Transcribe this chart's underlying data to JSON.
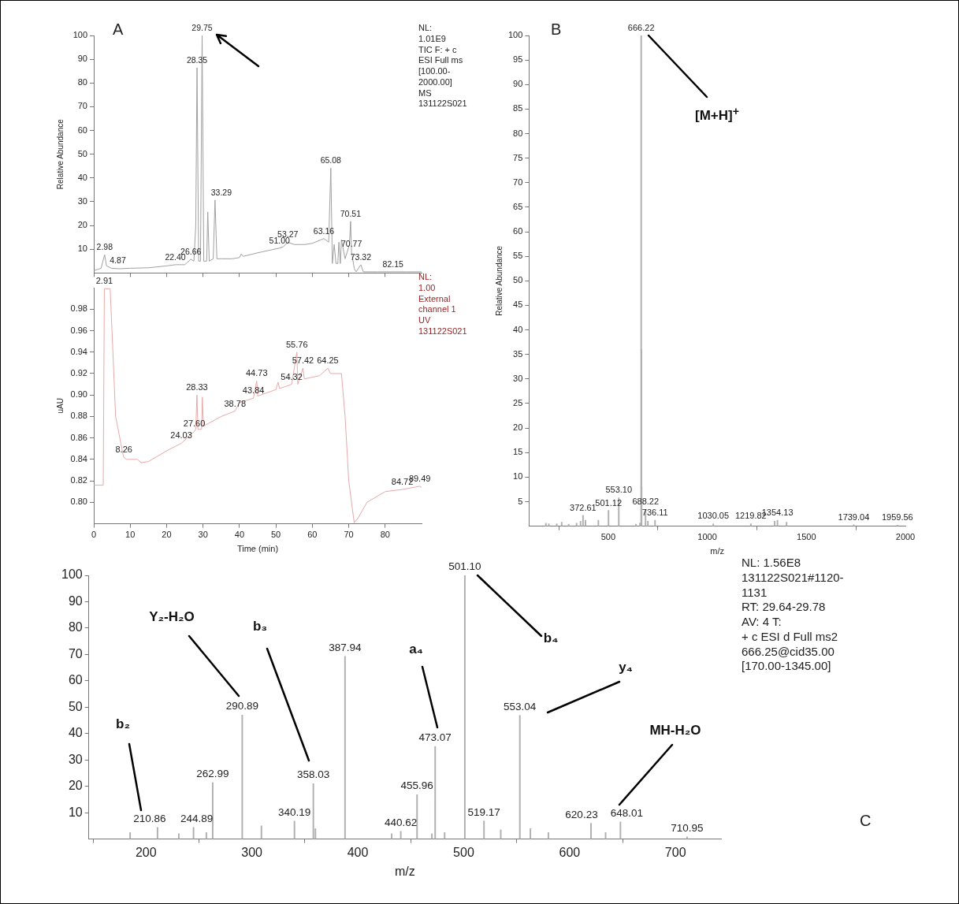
{
  "chart_data": [
    {
      "type": "line",
      "ylabel": "Relative Abundance",
      "xlim": [
        0,
        90
      ],
      "xticks": [
        {
          "value": 0,
          "label": null
        },
        {
          "value": 10,
          "label": null
        },
        {
          "value": 20,
          "label": null
        },
        {
          "value": 30,
          "label": null
        },
        {
          "value": 40,
          "label": null
        },
        {
          "value": 50,
          "label": null
        },
        {
          "value": 60,
          "label": null
        },
        {
          "value": 70,
          "label": null
        },
        {
          "value": 80,
          "label": null
        }
      ],
      "ylim": [
        0,
        100
      ],
      "yticks": [
        10,
        20,
        30,
        40,
        50,
        60,
        70,
        80,
        90,
        100
      ],
      "tick_labels": "y",
      "color": "#a0a0a0",
      "x": [
        0,
        1,
        2,
        2.98,
        3.5,
        4.87,
        7,
        10,
        15,
        20,
        22.4,
        25,
        26.66,
        27.5,
        28.0,
        28.35,
        28.8,
        29.3,
        29.75,
        30.2,
        31,
        31.3,
        31.7,
        32.8,
        33.29,
        33.8,
        35,
        38,
        40,
        40.5,
        41,
        45,
        48,
        51,
        52,
        53.27,
        55,
        58,
        60,
        63.16,
        64.5,
        65.08,
        65.5,
        66,
        66.5,
        67,
        67.3,
        67.7,
        68,
        69,
        70.2,
        70.51,
        70.77,
        71.5,
        72,
        73.32,
        74,
        78,
        82.15,
        86,
        90
      ],
      "values": [
        1,
        1.5,
        2,
        7.7,
        3,
        2,
        1.8,
        2,
        2.2,
        3,
        3.5,
        3.5,
        5.8,
        5,
        20,
        86.4,
        5,
        5,
        100,
        5,
        5,
        25.7,
        5,
        6,
        30.7,
        6,
        6,
        6,
        6.5,
        8,
        7,
        8.5,
        9.5,
        10.5,
        11,
        13,
        12,
        12,
        12.5,
        14.5,
        13,
        44.2,
        4,
        12,
        4,
        4,
        13,
        4,
        14,
        6,
        12,
        21.8,
        9,
        2,
        0.5,
        3.5,
        0.5,
        0.5,
        0.5,
        0.5,
        0.5
      ],
      "annotations": [
        {
          "text": "2.98",
          "x": 2.98,
          "y": 7.7
        },
        {
          "text": "4.87",
          "x": 4.87,
          "y": 2
        },
        {
          "text": "22.40",
          "x": 22.4,
          "y": 3.5
        },
        {
          "text": "26.66",
          "x": 26.66,
          "y": 5.8
        },
        {
          "text": "28.35",
          "x": 28.35,
          "y": 86.4
        },
        {
          "text": "29.75",
          "x": 29.75,
          "y": 100
        },
        {
          "text": "33.29",
          "x": 33.29,
          "y": 30.7
        },
        {
          "text": "51.00",
          "x": 51,
          "y": 10.5
        },
        {
          "text": "53.27",
          "x": 53.27,
          "y": 13
        },
        {
          "text": "63.16",
          "x": 63.16,
          "y": 14.5
        },
        {
          "text": "65.08",
          "x": 65.08,
          "y": 44.2
        },
        {
          "text": "70.51",
          "x": 70.51,
          "y": 21.8
        },
        {
          "text": "70.77",
          "x": 70.77,
          "y": 9
        },
        {
          "text": "73.32",
          "x": 73.32,
          "y": 3.5
        },
        {
          "text": "82.15",
          "x": 82.15,
          "y": 0.5
        },
        "A",
        "NL:\n1.01E9\nTIC F: + c\nESI Full ms\n[100.00-\n2000.00]  MS\n131122S021"
      ]
    },
    {
      "type": "line",
      "xlabel": "Time (min)",
      "ylabel": "uAU",
      "xlim": [
        0,
        90
      ],
      "xticks": [
        0,
        10,
        20,
        30,
        40,
        50,
        60,
        70,
        80
      ],
      "ylim": [
        0.78,
        1.0
      ],
      "yticks": [
        {
          "value": 0.8,
          "label": "0.80"
        },
        {
          "value": 0.82,
          "label": "0.82"
        },
        {
          "value": 0.84,
          "label": "0.84"
        },
        {
          "value": 0.86,
          "label": "0.86"
        },
        {
          "value": 0.88,
          "label": "0.88"
        },
        {
          "value": 0.9,
          "label": "0.90"
        },
        {
          "value": 0.92,
          "label": "0.92"
        },
        {
          "value": 0.94,
          "label": "0.94"
        },
        {
          "value": 0.96,
          "label": "0.96"
        },
        {
          "value": 0.98,
          "label": "0.98"
        }
      ],
      "color": "#e8a8a8",
      "x": [
        0,
        2.6,
        2.91,
        4.5,
        5,
        6,
        8,
        8.26,
        9,
        12,
        13,
        15,
        20,
        24.03,
        27.6,
        28.0,
        28.33,
        28.6,
        29.6,
        29.8,
        30.1,
        35,
        38.78,
        40,
        43.84,
        44.73,
        45,
        50,
        50.6,
        51,
        54.32,
        55.76,
        56,
        57.42,
        57.8,
        62,
        64.25,
        65,
        68,
        69,
        70,
        71.5,
        72.5,
        75,
        80,
        84.72,
        89.49,
        90
      ],
      "values": [
        0.816,
        0.816,
        0.999,
        0.999,
        0.96,
        0.88,
        0.845,
        0.842,
        0.84,
        0.84,
        0.837,
        0.838,
        0.848,
        0.855,
        0.866,
        0.868,
        0.9,
        0.868,
        0.868,
        0.898,
        0.871,
        0.88,
        0.885,
        0.893,
        0.897,
        0.913,
        0.899,
        0.905,
        0.912,
        0.906,
        0.91,
        0.94,
        0.91,
        0.925,
        0.915,
        0.918,
        0.925,
        0.92,
        0.92,
        0.88,
        0.82,
        0.781,
        0.785,
        0.8,
        0.81,
        0.812,
        0.815,
        0.814
      ],
      "annotations": [
        {
          "text": "2.91",
          "x": 2.91,
          "y": 0.999
        },
        {
          "text": "8.26",
          "x": 8.26,
          "y": 0.842
        },
        {
          "text": "24.03",
          "x": 24.03,
          "y": 0.855
        },
        {
          "text": "27.60",
          "x": 27.6,
          "y": 0.866
        },
        {
          "text": "28.33",
          "x": 28.33,
          "y": 0.9
        },
        {
          "text": "38.78",
          "x": 38.78,
          "y": 0.885
        },
        {
          "text": "43.84",
          "x": 43.84,
          "y": 0.897
        },
        {
          "text": "44.73",
          "x": 44.73,
          "y": 0.913
        },
        {
          "text": "54.32",
          "x": 54.32,
          "y": 0.91
        },
        {
          "text": "55.76",
          "x": 55.76,
          "y": 0.94
        },
        {
          "text": "57.42",
          "x": 57.42,
          "y": 0.925
        },
        {
          "text": "64.25",
          "x": 64.25,
          "y": 0.925
        },
        {
          "text": "84.72",
          "x": 84.72,
          "y": 0.812
        },
        {
          "text": "89.49",
          "x": 89.49,
          "y": 0.815
        },
        "NL:\n1.00\nExternal\nchannel 1\nUV\n131122S021"
      ]
    },
    {
      "type": "bar",
      "xlabel": "m/z",
      "ylabel": "Relative Abundance",
      "xlim": [
        100,
        2000
      ],
      "xticks": [
        500,
        1000,
        1500,
        2000
      ],
      "ylim": [
        0,
        100
      ],
      "yticks": [
        5,
        10,
        15,
        20,
        25,
        30,
        35,
        40,
        45,
        50,
        55,
        60,
        65,
        70,
        75,
        80,
        85,
        90,
        95,
        100
      ],
      "color": "#b0b0b0",
      "x": [
        185,
        200,
        240,
        265,
        300,
        340,
        360,
        372.61,
        385,
        450,
        501.12,
        553.1,
        640,
        660,
        666.22,
        667.2,
        668.2,
        688.22,
        700,
        736.11,
        1030.05,
        1219.82,
        1340,
        1354.13,
        1400,
        1739.04,
        1959.56
      ],
      "values": [
        0.6,
        0.5,
        0.5,
        0.8,
        0.4,
        0.6,
        1.0,
        2.2,
        1.2,
        1.2,
        3.2,
        5.8,
        0.4,
        0.6,
        100,
        36,
        8,
        3.4,
        1.0,
        1.2,
        0.5,
        0.5,
        1.0,
        1.2,
        0.8,
        0.3,
        0.2
      ],
      "annotations": [
        {
          "text": "372.61",
          "x": 372.61,
          "y": 2.2
        },
        {
          "text": "501.12",
          "x": 501.12,
          "y": 3.2
        },
        {
          "text": "553.10",
          "x": 553.1,
          "y": 5.8
        },
        {
          "text": "666.22",
          "x": 666.22,
          "y": 100
        },
        {
          "text": "688.22",
          "x": 688.22,
          "y": 3.4
        },
        {
          "text": "736.11",
          "x": 736.11,
          "y": 1.2
        },
        {
          "text": "1030.05",
          "x": 1030.05,
          "y": 0.5
        },
        {
          "text": "1219.82",
          "x": 1219.82,
          "y": 0.5
        },
        {
          "text": "1354.13",
          "x": 1354.13,
          "y": 1.2
        },
        {
          "text": "1739.04",
          "x": 1739.04,
          "y": 0.3
        },
        {
          "text": "1959.56",
          "x": 1959.56,
          "y": 0.2
        },
        "[M+H]$^{+}$",
        "B"
      ]
    },
    {
      "type": "bar",
      "xlabel": "m/z",
      "xlim": [
        146,
        743
      ],
      "xticks": [
        200,
        300,
        400,
        500,
        600,
        700
      ],
      "ylim": [
        0,
        100
      ],
      "yticks": [
        10,
        20,
        30,
        40,
        50,
        60,
        70,
        80,
        90,
        100
      ],
      "color": "#b0b0b0",
      "x": [
        185,
        210.86,
        231,
        244.89,
        257,
        262.99,
        290.89,
        309,
        340.19,
        358.03,
        360,
        387.94,
        432,
        440.62,
        455.96,
        470,
        473.07,
        482,
        501.1,
        519.17,
        535,
        553.04,
        563,
        580,
        620.23,
        634,
        648.01,
        710.95
      ],
      "values": [
        2.5,
        4.4,
        2,
        4.4,
        2.5,
        21.4,
        47,
        5,
        6.8,
        21,
        4,
        69.3,
        2,
        2.9,
        16.8,
        2,
        35.1,
        2.5,
        100,
        6.9,
        3.5,
        46.9,
        4,
        2.5,
        6.0,
        2.5,
        6.5,
        0.8
      ],
      "annotations": [
        {
          "text": "210.86",
          "x": 210.86,
          "y": 4.4
        },
        {
          "text": "244.89",
          "x": 244.89,
          "y": 4.4
        },
        {
          "text": "262.99",
          "x": 262.99,
          "y": 21.4
        },
        {
          "text": "290.89",
          "x": 290.89,
          "y": 47
        },
        {
          "text": "340.19",
          "x": 340.19,
          "y": 6.8
        },
        {
          "text": "358.03",
          "x": 358.03,
          "y": 21
        },
        {
          "text": "387.94",
          "x": 387.94,
          "y": 69.3
        },
        {
          "text": "440.62",
          "x": 440.62,
          "y": 2.9
        },
        {
          "text": "455.96",
          "x": 455.96,
          "y": 16.8
        },
        {
          "text": "473.07",
          "x": 473.07,
          "y": 35.1
        },
        {
          "text": "501.10",
          "x": 501.1,
          "y": 100
        },
        {
          "text": "519.17",
          "x": 519.17,
          "y": 6.9
        },
        {
          "text": "553.04",
          "x": 553.04,
          "y": 46.9
        },
        {
          "text": "620.23",
          "x": 620.23,
          "y": 6.0
        },
        {
          "text": "648.01",
          "x": 648.01,
          "y": 6.5
        },
        {
          "text": "710.95",
          "x": 710.95,
          "y": 0.8
        },
        "b₂",
        "Y₂-H₂O",
        "b₃",
        "a₄",
        "b₄",
        "y₄",
        "MH-H₂O",
        "NL: 1.56E8\n131122S021#1120-1131\nRT: 29.64-29.78  AV: 4 T:\n+ c ESI d Full ms2\n666.25@cid35.00\n[170.00-1345.00]",
        "C"
      ]
    }
  ]
}
